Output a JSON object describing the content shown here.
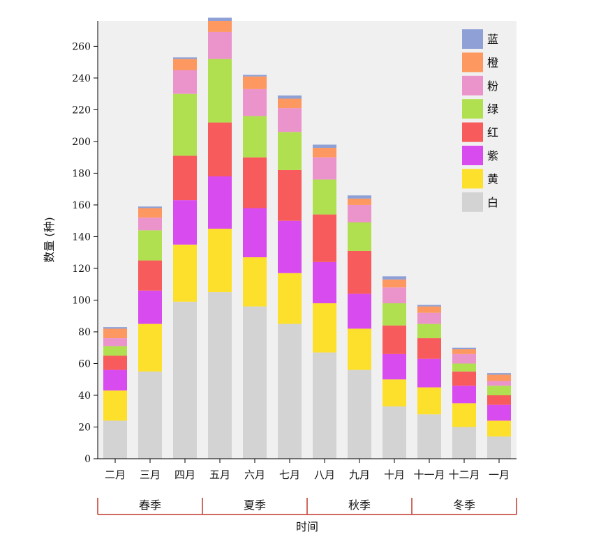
{
  "chart_data": {
    "type": "bar",
    "stacked": true,
    "categories": [
      "二月",
      "三月",
      "四月",
      "五月",
      "六月",
      "七月",
      "八月",
      "九月",
      "十月",
      "十一月",
      "十二月",
      "一月"
    ],
    "series": [
      {
        "name": "白",
        "color": "#d3d3d3",
        "values": [
          24,
          55,
          99,
          105,
          96,
          85,
          67,
          56,
          33,
          28,
          20,
          14
        ]
      },
      {
        "name": "黄",
        "color": "#fde02b",
        "values": [
          19,
          30,
          36,
          40,
          31,
          32,
          31,
          26,
          17,
          17,
          15,
          10
        ]
      },
      {
        "name": "紫",
        "color": "#d84cef",
        "values": [
          13,
          21,
          28,
          33,
          31,
          33,
          26,
          22,
          16,
          18,
          11,
          10
        ]
      },
      {
        "name": "红",
        "color": "#f75b5b",
        "values": [
          9,
          19,
          28,
          34,
          32,
          32,
          30,
          27,
          18,
          13,
          9,
          6
        ]
      },
      {
        "name": "绿",
        "color": "#b0e04f",
        "values": [
          6,
          19,
          39,
          40,
          26,
          24,
          22,
          18,
          14,
          9,
          5,
          6
        ]
      },
      {
        "name": "粉",
        "color": "#eb94cc",
        "values": [
          5,
          8,
          15,
          17,
          17,
          15,
          14,
          11,
          10,
          7,
          6,
          3
        ]
      },
      {
        "name": "橙",
        "color": "#fd9960",
        "values": [
          6,
          6,
          7,
          7,
          8,
          6,
          6,
          4,
          5,
          4,
          3,
          4
        ]
      },
      {
        "name": "蓝",
        "color": "#8ea0d6",
        "values": [
          1,
          1,
          1,
          2,
          1,
          2,
          2,
          2,
          2,
          1,
          1,
          1
        ]
      }
    ],
    "y_ticks": [
      0,
      20,
      40,
      60,
      80,
      100,
      120,
      140,
      160,
      180,
      200,
      220,
      240,
      260
    ],
    "ylim": [
      0,
      276
    ],
    "ylabel": "数量 (种)",
    "xlabel": "时间",
    "seasons": [
      {
        "name": "春季",
        "start": 0,
        "end": 2
      },
      {
        "name": "夏季",
        "start": 3,
        "end": 5
      },
      {
        "name": "秋季",
        "start": 6,
        "end": 8
      },
      {
        "name": "冬季",
        "start": 9,
        "end": 11
      }
    ],
    "legend_position": "top-right",
    "grid": false,
    "background": "#f0f0f0",
    "season_bracket_color": "#c0392b"
  }
}
